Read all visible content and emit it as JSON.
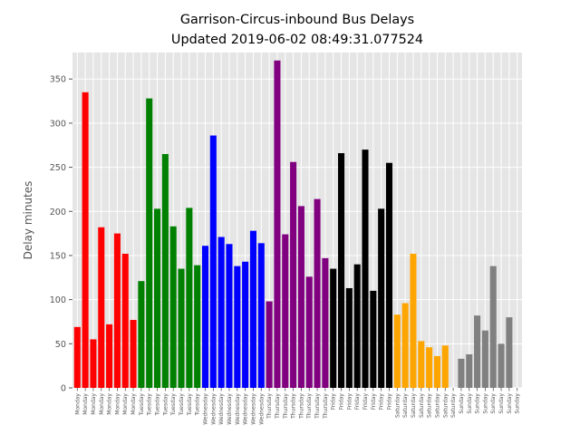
{
  "chart_data": {
    "type": "bar",
    "title": "Garrison-Circus-inbound Bus Delays",
    "subtitle": "Updated 2019-06-02 08:49:31.077524",
    "xlabel": "",
    "ylabel": "Delay minutes",
    "ylim": [
      0,
      380
    ],
    "yticks": [
      0,
      50,
      100,
      150,
      200,
      250,
      300,
      350
    ],
    "grid": true,
    "background": "#e5e5e5",
    "gridColor": "#ffffff",
    "series": [
      {
        "color": "#ff0000",
        "categories": [
          "Monday",
          "Monday",
          "Monday",
          "Monday",
          "Monday",
          "Monday",
          "Monday",
          "Monday"
        ],
        "values": [
          69,
          335,
          55,
          182,
          72,
          175,
          152,
          77
        ]
      },
      {
        "color": "#008000",
        "categories": [
          "Tuesday",
          "Tuesday",
          "Tuesday",
          "Tuesday",
          "Tuesday",
          "Tuesday",
          "Tuesday",
          "Tuesday"
        ],
        "values": [
          121,
          328,
          203,
          265,
          183,
          135,
          204,
          139
        ]
      },
      {
        "color": "#0000ff",
        "categories": [
          "Wednesday",
          "Wednesday",
          "Wednesday",
          "Wednesday",
          "Wednesday",
          "Wednesday",
          "Wednesday",
          "Wednesday"
        ],
        "values": [
          161,
          286,
          171,
          163,
          138,
          143,
          178,
          164
        ]
      },
      {
        "color": "#800080",
        "categories": [
          "Thursday",
          "Thursday",
          "Thursday",
          "Thursday",
          "Thursday",
          "Thursday",
          "Thursday",
          "Thursday"
        ],
        "values": [
          98,
          371,
          174,
          256,
          206,
          126,
          214,
          147
        ]
      },
      {
        "color": "#000000",
        "categories": [
          "Friday",
          "Friday",
          "Friday",
          "Friday",
          "Friday",
          "Friday",
          "Friday",
          "Friday"
        ],
        "values": [
          135,
          266,
          113,
          140,
          270,
          110,
          203,
          255
        ]
      },
      {
        "color": "#ffa500",
        "categories": [
          "Saturday",
          "Saturday",
          "Saturday",
          "Saturday",
          "Saturday",
          "Saturday",
          "Saturday",
          "Saturday"
        ],
        "values": [
          83,
          96,
          152,
          53,
          46,
          36,
          48,
          0
        ]
      },
      {
        "color": "#808080",
        "categories": [
          "Sunday",
          "Sunday",
          "Sunday",
          "Sunday",
          "Sunday",
          "Sunday",
          "Sunday",
          "Sunday"
        ],
        "values": [
          33,
          38,
          82,
          65,
          138,
          50,
          80,
          0
        ]
      }
    ]
  }
}
